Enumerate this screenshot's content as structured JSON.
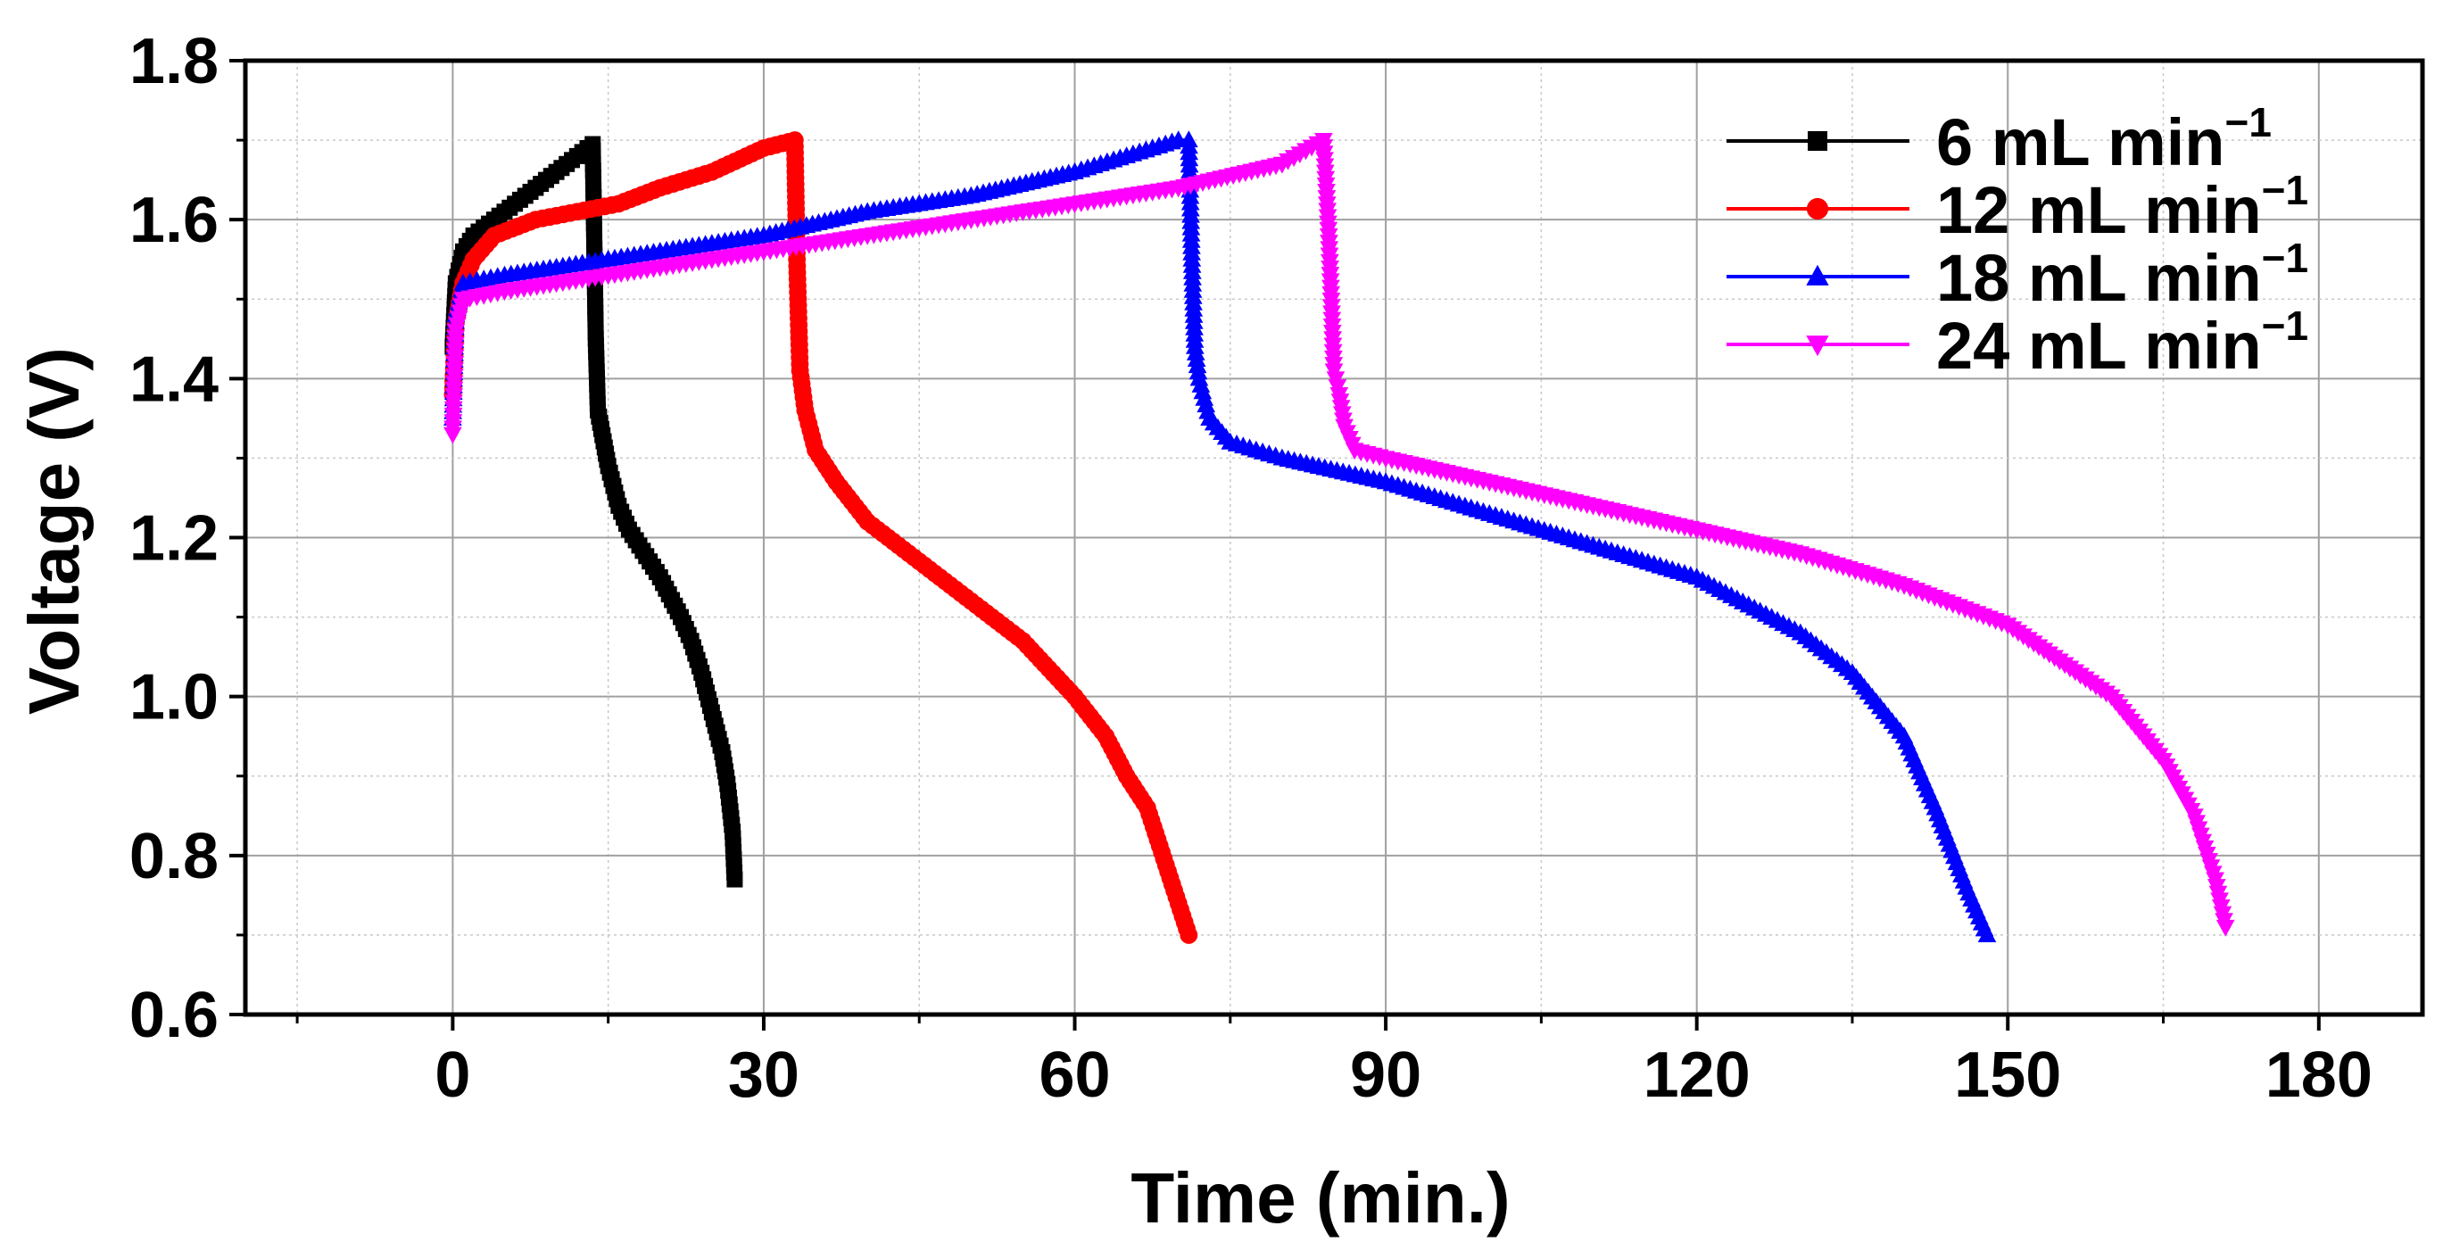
{
  "chart_data": {
    "type": "line",
    "title": "",
    "xlabel": "Time (min.)",
    "ylabel": "Voltage (V)",
    "xlim": [
      -20,
      190
    ],
    "ylim": [
      0.6,
      1.8
    ],
    "xticks": [
      "0",
      "30",
      "60",
      "90",
      "120",
      "150",
      "180"
    ],
    "yticks": [
      "0.6",
      "0.8",
      "1.0",
      "1.2",
      "1.4",
      "1.6",
      "1.8"
    ],
    "grid": true,
    "legend_position": "top-right",
    "series": [
      {
        "name": "6 mL min",
        "unit_exponent": "−1",
        "color": "#000000",
        "marker": "square",
        "x": [
          0,
          0.3,
          1,
          2,
          4,
          6,
          8,
          10,
          12,
          13.5,
          13.6,
          13.8,
          14,
          15,
          16,
          17,
          18,
          20,
          22,
          23,
          24,
          25,
          26,
          26.5,
          27,
          27.2
        ],
        "y": [
          1.44,
          1.52,
          1.56,
          1.58,
          1.6,
          1.62,
          1.64,
          1.66,
          1.68,
          1.695,
          1.62,
          1.45,
          1.36,
          1.29,
          1.24,
          1.21,
          1.19,
          1.15,
          1.1,
          1.07,
          1.03,
          0.98,
          0.93,
          0.89,
          0.83,
          0.77
        ]
      },
      {
        "name": "12 mL min",
        "unit_exponent": "−1",
        "color": "#ff0000",
        "marker": "circle",
        "x": [
          0,
          0.3,
          1,
          2,
          4,
          8,
          12,
          16,
          20,
          25,
          30,
          33,
          33.2,
          33.5,
          34,
          35,
          37,
          40,
          45,
          50,
          55,
          60,
          63,
          65,
          67,
          68,
          69,
          70,
          71
        ],
        "y": [
          1.38,
          1.47,
          1.52,
          1.55,
          1.58,
          1.6,
          1.61,
          1.62,
          1.64,
          1.66,
          1.69,
          1.7,
          1.55,
          1.41,
          1.36,
          1.31,
          1.27,
          1.22,
          1.17,
          1.12,
          1.07,
          1.0,
          0.95,
          0.9,
          0.86,
          0.82,
          0.78,
          0.74,
          0.7
        ]
      },
      {
        "name": "18 mL min",
        "unit_exponent": "−1",
        "color": "#0000ff",
        "marker": "triangle-up",
        "x": [
          0,
          0.3,
          1,
          5,
          10,
          20,
          30,
          40,
          50,
          60,
          65,
          70,
          71,
          71.3,
          71.6,
          72,
          73,
          75,
          80,
          90,
          100,
          110,
          120,
          130,
          135,
          140,
          143,
          146,
          148
        ],
        "y": [
          1.35,
          1.48,
          1.52,
          1.53,
          1.54,
          1.56,
          1.58,
          1.61,
          1.63,
          1.66,
          1.68,
          1.7,
          1.7,
          1.55,
          1.44,
          1.4,
          1.35,
          1.32,
          1.3,
          1.27,
          1.23,
          1.19,
          1.15,
          1.08,
          1.03,
          0.95,
          0.86,
          0.76,
          0.7
        ]
      },
      {
        "name": "24 mL min",
        "unit_exponent": "−1",
        "color": "#ff00ff",
        "marker": "triangle-down",
        "x": [
          0,
          0.3,
          1,
          5,
          10,
          20,
          30,
          40,
          50,
          60,
          70,
          80,
          84,
          84.5,
          85,
          85.5,
          86,
          87,
          90,
          100,
          110,
          120,
          130,
          140,
          150,
          160,
          165,
          168,
          170,
          171
        ],
        "y": [
          1.33,
          1.46,
          1.5,
          1.51,
          1.52,
          1.54,
          1.56,
          1.58,
          1.6,
          1.62,
          1.64,
          1.67,
          1.7,
          1.58,
          1.41,
          1.38,
          1.34,
          1.31,
          1.3,
          1.27,
          1.24,
          1.21,
          1.18,
          1.14,
          1.09,
          1.0,
          0.92,
          0.85,
          0.77,
          0.71
        ]
      }
    ]
  }
}
